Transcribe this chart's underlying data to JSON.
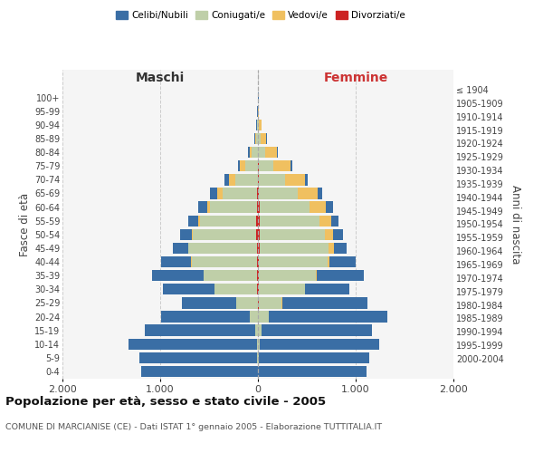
{
  "age_groups_bottom_to_top": [
    "0-4",
    "5-9",
    "10-14",
    "15-19",
    "20-24",
    "25-29",
    "30-34",
    "35-39",
    "40-44",
    "45-49",
    "50-54",
    "55-59",
    "60-64",
    "65-69",
    "70-74",
    "75-79",
    "80-84",
    "85-89",
    "90-94",
    "95-99",
    "100+"
  ],
  "birth_years_bottom_to_top": [
    "2000-2004",
    "1995-1999",
    "1990-1994",
    "1985-1989",
    "1980-1984",
    "1975-1979",
    "1970-1974",
    "1965-1969",
    "1960-1964",
    "1955-1959",
    "1950-1954",
    "1945-1949",
    "1940-1944",
    "1935-1939",
    "1930-1934",
    "1925-1929",
    "1920-1924",
    "1915-1919",
    "1910-1914",
    "1905-1909",
    "≤ 1904"
  ],
  "males": {
    "celibi": [
      1190,
      1210,
      1310,
      1130,
      910,
      550,
      530,
      520,
      310,
      150,
      120,
      100,
      90,
      80,
      50,
      25,
      15,
      8,
      5,
      2,
      2
    ],
    "coniugati": [
      3,
      5,
      10,
      30,
      80,
      220,
      440,
      550,
      670,
      700,
      650,
      580,
      480,
      360,
      230,
      130,
      60,
      20,
      10,
      3,
      2
    ],
    "vedovi": [
      0,
      0,
      0,
      0,
      1,
      1,
      1,
      2,
      3,
      5,
      10,
      15,
      30,
      50,
      60,
      50,
      25,
      8,
      3,
      1,
      0
    ],
    "divorziati": [
      0,
      0,
      0,
      0,
      1,
      3,
      5,
      8,
      10,
      12,
      15,
      15,
      10,
      5,
      3,
      2,
      1,
      0,
      0,
      0,
      0
    ]
  },
  "females": {
    "nubili": [
      1110,
      1130,
      1230,
      1130,
      1210,
      870,
      450,
      480,
      270,
      130,
      100,
      80,
      70,
      50,
      30,
      15,
      10,
      8,
      5,
      2,
      2
    ],
    "coniugate": [
      3,
      5,
      15,
      40,
      110,
      240,
      470,
      580,
      700,
      710,
      670,
      610,
      510,
      400,
      270,
      150,
      70,
      25,
      12,
      3,
      2
    ],
    "vedove": [
      0,
      0,
      0,
      0,
      1,
      2,
      5,
      10,
      20,
      50,
      80,
      120,
      170,
      200,
      200,
      180,
      120,
      60,
      20,
      5,
      2
    ],
    "divorziate": [
      0,
      0,
      0,
      1,
      2,
      5,
      8,
      10,
      12,
      15,
      18,
      18,
      15,
      10,
      8,
      5,
      3,
      2,
      1,
      0,
      0
    ]
  },
  "colors": {
    "celibi": "#3A6EA5",
    "coniugati": "#BFCFA8",
    "vedovi": "#F0C060",
    "divorziati": "#CC2222"
  },
  "title": "Popolazione per età, sesso e stato civile - 2005",
  "subtitle": "COMUNE DI MARCIANISE (CE) - Dati ISTAT 1° gennaio 2005 - Elaborazione TUTTITALIA.IT",
  "xlabel_left": "Maschi",
  "xlabel_right": "Femmine",
  "ylabel_left": "Fasce di età",
  "ylabel_right": "Anni di nascita",
  "xlim": 2000,
  "legend_labels": [
    "Celibi/Nubili",
    "Coniugati/e",
    "Vedovi/e",
    "Divorziati/e"
  ],
  "bg_color": "#f5f5f5",
  "fig_color": "#ffffff"
}
